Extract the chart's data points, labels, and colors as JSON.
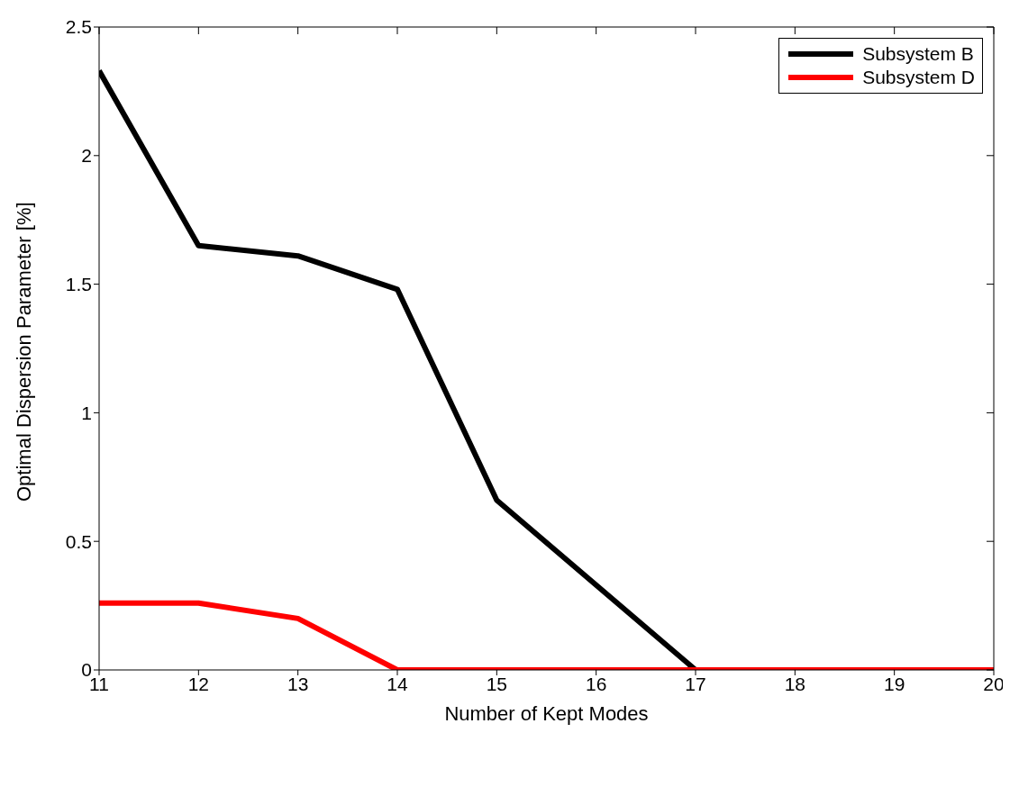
{
  "chart_data": {
    "type": "line",
    "xlabel": "Number of Kept Modes",
    "ylabel": "Optimal Dispersion Parameter [%]",
    "x": [
      11,
      12,
      13,
      14,
      15,
      16,
      17,
      18,
      19,
      20
    ],
    "series": [
      {
        "name": "Subsystem B",
        "color": "#000000",
        "values": [
          2.33,
          1.65,
          1.61,
          1.48,
          0.66,
          0.33,
          0,
          0,
          0,
          0
        ]
      },
      {
        "name": "Subsystem D",
        "color": "#ff0000",
        "values": [
          0.26,
          0.26,
          0.2,
          0,
          0,
          0,
          0,
          0,
          0,
          0
        ]
      }
    ],
    "xlim": [
      11,
      20
    ],
    "xticks": [
      11,
      12,
      13,
      14,
      15,
      16,
      17,
      18,
      19,
      20
    ],
    "ylim": [
      0,
      2.5
    ],
    "yticks": [
      0,
      0.5,
      1,
      1.5,
      2,
      2.5
    ],
    "grid": false,
    "legend": "top right",
    "marker": "none",
    "line_style": "solid"
  }
}
